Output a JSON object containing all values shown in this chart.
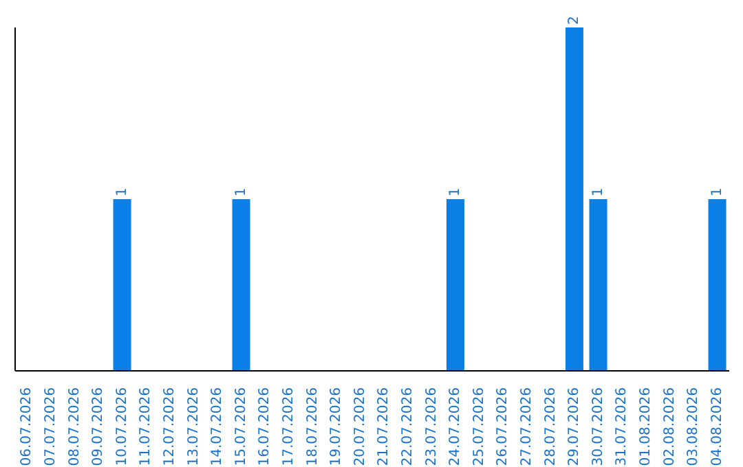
{
  "chart_data": {
    "type": "bar",
    "categories": [
      "06.07.2026",
      "07.07.2026",
      "08.07.2026",
      "09.07.2026",
      "10.07.2026",
      "11.07.2026",
      "12.07.2026",
      "13.07.2026",
      "14.07.2026",
      "15.07.2026",
      "16.07.2026",
      "17.07.2026",
      "18.07.2026",
      "19.07.2026",
      "20.07.2026",
      "21.07.2026",
      "22.07.2026",
      "23.07.2026",
      "24.07.2026",
      "25.07.2026",
      "26.07.2026",
      "27.07.2026",
      "28.07.2026",
      "29.07.2026",
      "30.07.2026",
      "31.07.2026",
      "01.08.2026",
      "02.08.2026",
      "03.08.2026",
      "04.08.2026"
    ],
    "values": [
      0,
      0,
      0,
      0,
      1,
      0,
      0,
      0,
      0,
      1,
      0,
      0,
      0,
      0,
      0,
      0,
      0,
      0,
      1,
      0,
      0,
      0,
      0,
      2,
      1,
      0,
      0,
      0,
      0,
      1
    ],
    "value_labels": [
      null,
      null,
      null,
      null,
      "1",
      null,
      null,
      null,
      null,
      "1",
      null,
      null,
      null,
      null,
      null,
      null,
      null,
      null,
      "1",
      null,
      null,
      null,
      null,
      "2",
      "1",
      null,
      null,
      null,
      null,
      "1"
    ],
    "color": "#0a7fe6",
    "tick_labels": "x"
  }
}
